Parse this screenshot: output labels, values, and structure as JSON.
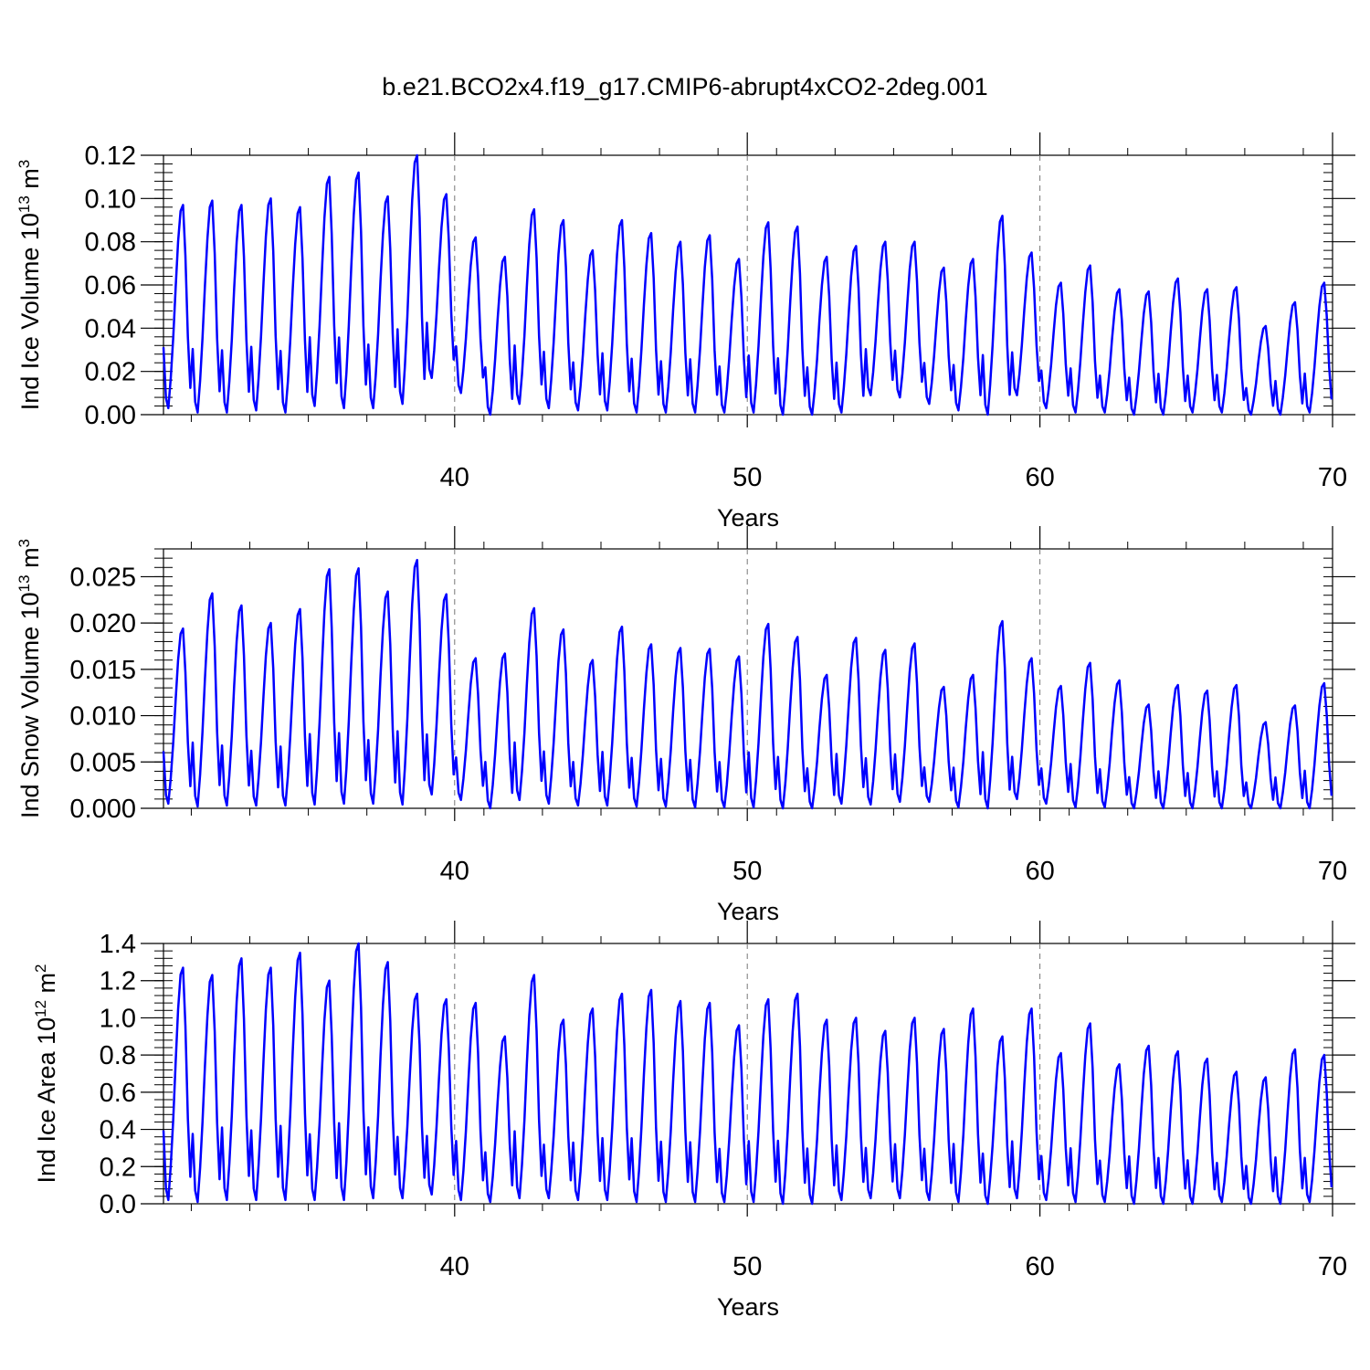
{
  "figure": {
    "title": "b.e21.BCO2x4.f19_g17.CMIP6-abrupt4xCO2-2deg.001",
    "line_color": "#0000ff"
  },
  "chart_data": [
    {
      "type": "line",
      "id": "ice-volume",
      "xlabel": "Years",
      "ylabel_text": "Ind Ice Volume 10",
      "ylabel_exp": "13",
      "ylabel_unit": " m",
      "ylabel_unit_exp": "3",
      "xlim": [
        30.05,
        70.0
      ],
      "ylim": [
        0.0,
        0.12
      ],
      "yticks": [
        0.0,
        0.02,
        0.04,
        0.06,
        0.08,
        0.1,
        0.12
      ],
      "ytick_labels": [
        "0.00",
        "0.02",
        "0.04",
        "0.06",
        "0.08",
        "0.10",
        "0.12"
      ],
      "xticks": [
        40,
        50,
        60,
        70
      ],
      "xtick_labels": [
        "40",
        "50",
        "60",
        "70"
      ],
      "grid": "dashed vertical lines at 40, 50, 60",
      "annual_peaks": [
        0.097,
        0.099,
        0.097,
        0.1,
        0.096,
        0.11,
        0.112,
        0.101,
        0.12,
        0.102,
        0.082,
        0.073,
        0.095,
        0.09,
        0.076,
        0.09,
        0.084,
        0.08,
        0.083,
        0.072,
        0.089,
        0.087,
        0.073,
        0.078,
        0.08,
        0.08,
        0.068,
        0.072,
        0.092,
        0.075,
        0.061,
        0.069,
        0.058,
        0.057,
        0.063,
        0.058,
        0.059,
        0.041,
        0.052,
        0.061
      ],
      "annual_minima": [
        0.003,
        0.001,
        0.001,
        0.002,
        0.001,
        0.004,
        0.003,
        0.003,
        0.005,
        0.017,
        0.01,
        0.0,
        0.005,
        0.003,
        0.002,
        0.002,
        0.001,
        0.001,
        0.001,
        0.001,
        0.001,
        0.0,
        0.0,
        0.001,
        0.009,
        0.008,
        0.005,
        0.002,
        0.0,
        0.009,
        0.003,
        0.001,
        0.001,
        0.0,
        0.0,
        0.001,
        0.001,
        0.0,
        0.0,
        0.001
      ]
    },
    {
      "type": "line",
      "id": "snow-volume",
      "xlabel": "Years",
      "ylabel_text": "Ind Snow Volume 10",
      "ylabel_exp": "13",
      "ylabel_unit": " m",
      "ylabel_unit_exp": "3",
      "xlim": [
        30.05,
        70.0
      ],
      "ylim": [
        0.0,
        0.028
      ],
      "yticks": [
        0.0,
        0.005,
        0.01,
        0.015,
        0.02,
        0.025
      ],
      "ytick_labels": [
        "0.000",
        "0.005",
        "0.010",
        "0.015",
        "0.020",
        "0.025"
      ],
      "xticks": [
        40,
        50,
        60,
        70
      ],
      "xtick_labels": [
        "40",
        "50",
        "60",
        "70"
      ],
      "grid": "dashed vertical lines at 40, 50, 60",
      "annual_peaks": [
        0.0194,
        0.0232,
        0.0219,
        0.02,
        0.0215,
        0.0258,
        0.0259,
        0.0234,
        0.0268,
        0.0231,
        0.0162,
        0.0167,
        0.0216,
        0.0193,
        0.016,
        0.0196,
        0.0177,
        0.0173,
        0.0172,
        0.0164,
        0.0199,
        0.0185,
        0.0144,
        0.0184,
        0.0171,
        0.0178,
        0.0131,
        0.0144,
        0.0202,
        0.0162,
        0.0132,
        0.0157,
        0.0138,
        0.0112,
        0.0133,
        0.0127,
        0.0133,
        0.0093,
        0.0111,
        0.0135
      ],
      "annual_minima": [
        0.0005,
        0.0002,
        0.0003,
        0.0003,
        0.0003,
        0.0004,
        0.0005,
        0.0005,
        0.0004,
        0.0015,
        0.0009,
        0.0,
        0.0009,
        0.0005,
        0.0003,
        0.0003,
        0.0002,
        0.0002,
        0.0001,
        0.0001,
        0.0001,
        0.0,
        0.0,
        0.0005,
        0.0004,
        0.0007,
        0.0007,
        0.0001,
        0.0,
        0.001,
        0.0005,
        0.0001,
        0.0001,
        0.0,
        0.0,
        0.0,
        0.0,
        0.0,
        0.0,
        0.0
      ]
    },
    {
      "type": "line",
      "id": "ice-area",
      "xlabel": "Years",
      "ylabel_text": "Ind Ice Area 10",
      "ylabel_exp": "12",
      "ylabel_unit": " m",
      "ylabel_unit_exp": "2",
      "xlim": [
        30.05,
        70.0
      ],
      "ylim": [
        0.0,
        1.4
      ],
      "yticks": [
        0.0,
        0.2,
        0.4,
        0.6,
        0.8,
        1.0,
        1.2,
        1.4
      ],
      "ytick_labels": [
        "0.0",
        "0.2",
        "0.4",
        "0.6",
        "0.8",
        "1.0",
        "1.2",
        "1.4"
      ],
      "xticks": [
        40,
        50,
        60,
        70
      ],
      "xtick_labels": [
        "40",
        "50",
        "60",
        "70"
      ],
      "grid": "dashed vertical lines at 40, 50, 60",
      "annual_peaks": [
        1.27,
        1.23,
        1.32,
        1.27,
        1.35,
        1.2,
        1.4,
        1.3,
        1.13,
        1.1,
        1.08,
        0.9,
        1.23,
        0.99,
        1.05,
        1.13,
        1.15,
        1.09,
        1.08,
        0.96,
        1.1,
        1.13,
        0.99,
        1.0,
        0.93,
        1.0,
        0.94,
        1.05,
        0.9,
        1.05,
        0.81,
        0.97,
        0.75,
        0.85,
        0.82,
        0.78,
        0.71,
        0.68,
        0.83,
        0.8
      ],
      "annual_minima": [
        0.02,
        0.01,
        0.02,
        0.02,
        0.02,
        0.02,
        0.02,
        0.03,
        0.03,
        0.05,
        0.02,
        0.01,
        0.03,
        0.03,
        0.02,
        0.02,
        0.01,
        0.01,
        0.01,
        0.01,
        0.01,
        0.0,
        0.0,
        0.02,
        0.03,
        0.03,
        0.02,
        0.01,
        0.0,
        0.03,
        0.02,
        0.01,
        0.01,
        0.0,
        0.0,
        0.0,
        0.01,
        0.0,
        0.0,
        0.01
      ]
    }
  ]
}
